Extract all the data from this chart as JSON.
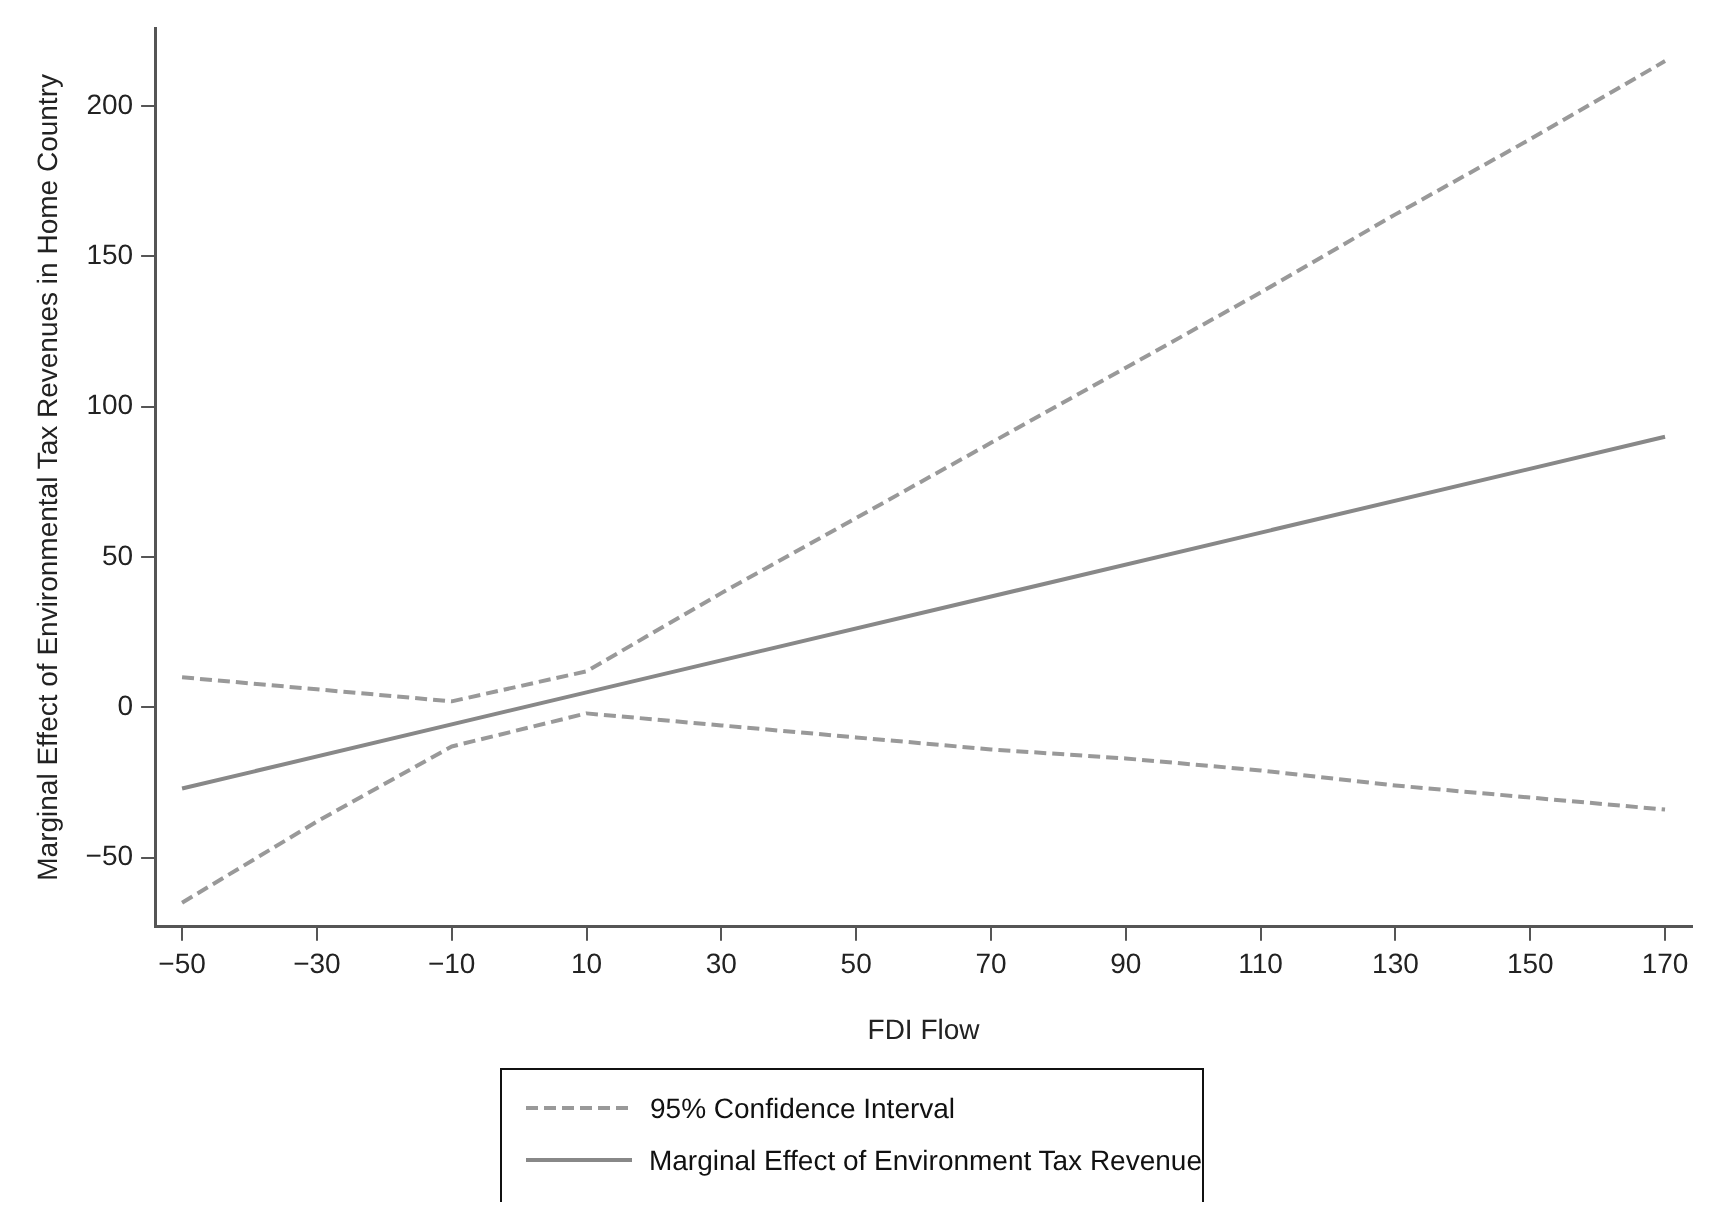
{
  "chart_data": {
    "type": "line",
    "xlabel": "FDI Flow",
    "ylabel": "Marginal Effect of Environmental Tax Revenues in Home Country",
    "series": [
      {
        "name": "95% Confidence Interval",
        "color": "#999999",
        "line_style": "dashed",
        "x": [
          -50,
          -30,
          -10,
          10,
          30,
          50,
          70,
          90,
          110,
          130,
          150,
          170
        ],
        "values": [
          10,
          6,
          2,
          12,
          38,
          63,
          88,
          113,
          138,
          164,
          189,
          215
        ]
      },
      {
        "color": "#999999",
        "line_style": "dashed",
        "x": [
          -50,
          -30,
          -10,
          10,
          30,
          50,
          70,
          90,
          110,
          130,
          150,
          170
        ],
        "values": [
          -65,
          -38,
          -13,
          -2,
          -6,
          -10,
          -14,
          -17,
          -21,
          -26,
          -30,
          -34
        ]
      },
      {
        "name": "Marginal Effect of Environment Tax Revenue",
        "color": "#888888",
        "line_style": "solid",
        "x": [
          -50,
          10,
          170
        ],
        "values": [
          -27,
          5,
          90
        ]
      }
    ],
    "xlim": [
      -54,
      174
    ],
    "xticks": [
      {
        "value": -50,
        "label": "−50"
      },
      {
        "value": -30,
        "label": "−30"
      },
      {
        "value": -10,
        "label": "−10"
      },
      10,
      30,
      50,
      70,
      90,
      110,
      130,
      150,
      170
    ],
    "ylim": [
      -73,
      226
    ],
    "yticks": [
      {
        "value": -50,
        "label": "−50"
      },
      0,
      50,
      100,
      150,
      200
    ],
    "grid": false,
    "legend": "bottom",
    "marker": "none"
  }
}
